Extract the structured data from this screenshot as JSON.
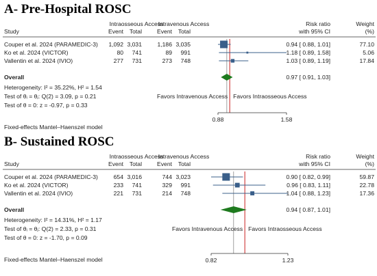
{
  "columns": {
    "study": "Study",
    "io_group": "Intraosseous Access",
    "iv_group": "Intravenous Access",
    "event": "Event",
    "total": "Total",
    "rr_line1": "Risk ratio",
    "rr_line2": "with 95% CI",
    "weight_line1": "Weight",
    "weight_line2": "(%)"
  },
  "colors": {
    "marker": "#3a5f8a",
    "overall": "#1e7a1e",
    "null_line": "#c81e1e",
    "ref_line": "#888888"
  },
  "chart_data": [
    {
      "type": "forest",
      "title": "A- Pre-Hospital ROSC",
      "studies": [
        {
          "name": "Couper et al. 2024 (PARAMEDIC-3)",
          "io_event": "1,092",
          "io_total": "3,031",
          "iv_event": "1,186",
          "iv_total": "3,035",
          "rr": 0.94,
          "lo": 0.88,
          "hi": 1.01,
          "rr_text": "0.94 [ 0.88,  1.01]",
          "weight": "77.10"
        },
        {
          "name": "Ko et al. 2024 (VICTOR)",
          "io_event": "80",
          "io_total": "741",
          "iv_event": "89",
          "iv_total": "991",
          "rr": 1.18,
          "lo": 0.89,
          "hi": 1.58,
          "rr_text": "1.18 [ 0.89,  1.58]",
          "weight": "5.06"
        },
        {
          "name": "Vallentin et al. 2024 (IVIO)",
          "io_event": "277",
          "io_total": "731",
          "iv_event": "273",
          "iv_total": "748",
          "rr": 1.03,
          "lo": 0.89,
          "hi": 1.19,
          "rr_text": "1.03 [ 0.89,  1.19]",
          "weight": "17.84"
        }
      ],
      "overall": {
        "label": "Overall",
        "rr": 0.97,
        "lo": 0.91,
        "hi": 1.03,
        "rr_text": "0.97 [ 0.91,  1.03]"
      },
      "stats": [
        "Heterogeneity: I² = 35.22%, H² = 1.54",
        "Test of θᵢ = θⱼ: Q(2) = 3.09, p = 0.21",
        "Test of θ = 0: z = -0.97, p = 0.33"
      ],
      "favors_left": "Favors Intravenous Access",
      "favors_right": "Favors Intraosseous Access",
      "xlim": [
        0.88,
        1.58
      ],
      "xticks": [
        0.88,
        1.58
      ],
      "tick_labels": [
        "0.88",
        "1.58"
      ],
      "null_value": 1.0,
      "model": "Fixed-effects Mantel–Haenszel model"
    },
    {
      "type": "forest",
      "title": "B- Sustained ROSC",
      "studies": [
        {
          "name": "Couper et al. 2024 (PARAMEDIC-3)",
          "io_event": "654",
          "io_total": "3,016",
          "iv_event": "744",
          "iv_total": "3,023",
          "rr": 0.9,
          "lo": 0.82,
          "hi": 0.99,
          "rr_text": "0.90 [ 0.82,  0.99]",
          "weight": "59.87"
        },
        {
          "name": "Ko et al. 2024 (VICTOR)",
          "io_event": "233",
          "io_total": "741",
          "iv_event": "329",
          "iv_total": "991",
          "rr": 0.96,
          "lo": 0.83,
          "hi": 1.11,
          "rr_text": "0.96 [ 0.83,  1.11]",
          "weight": "22.78"
        },
        {
          "name": "Vallentin et al. 2024 (IVIO)",
          "io_event": "221",
          "io_total": "731",
          "iv_event": "214",
          "iv_total": "748",
          "rr": 1.04,
          "lo": 0.88,
          "hi": 1.23,
          "rr_text": "1.04 [ 0.88,  1.23]",
          "weight": "17.36"
        }
      ],
      "overall": {
        "label": "Overall",
        "rr": 0.94,
        "lo": 0.87,
        "hi": 1.01,
        "rr_text": "0.94 [ 0.87,  1.01]"
      },
      "stats": [
        "Heterogeneity: I² = 14.31%, H² = 1.17",
        "Test of θᵢ = θⱼ: Q(2) = 2.33, p = 0.31",
        "Test of θ = 0: z = -1.70, p = 0.09"
      ],
      "favors_left": "Favors Intravenous Access",
      "favors_right": "Favors Intraosseous Access",
      "xlim": [
        0.82,
        1.23
      ],
      "xticks": [
        0.82,
        1.23
      ],
      "tick_labels": [
        "0.82",
        "1.23"
      ],
      "null_value": 1.0,
      "model": "Fixed-effects Mantel–Haenszel model"
    }
  ]
}
